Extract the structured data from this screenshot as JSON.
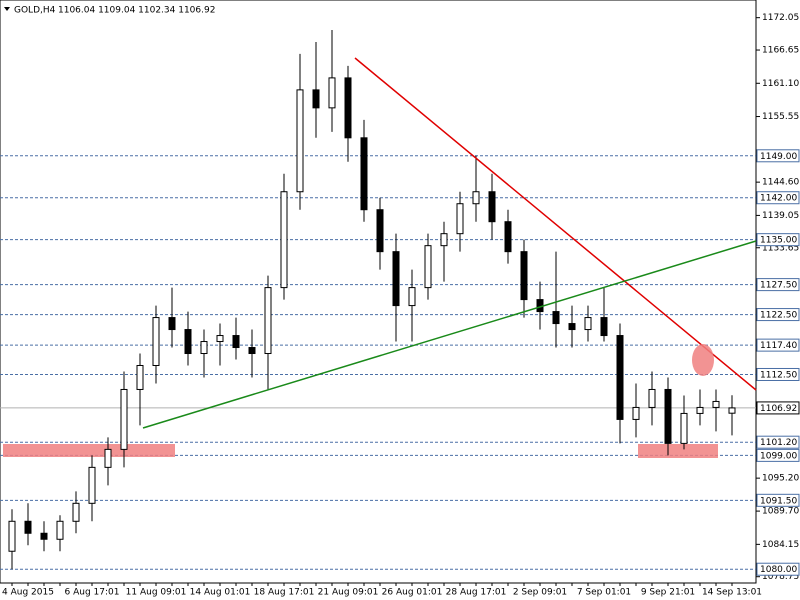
{
  "chart_data": {
    "type": "candlestick",
    "title": "GOLD,H4",
    "subtitle": "1106.04 1109.04 1102.34 1106.92",
    "categories": [
      null,
      "4 Aug 2015",
      null,
      null,
      null,
      "6 Aug 17:01",
      null,
      null,
      null,
      "11 Aug 09:01",
      null,
      null,
      null,
      "14 Aug 01:01",
      null,
      null,
      null,
      "18 Aug 17:01",
      null,
      null,
      null,
      "21 Aug 09:01",
      null,
      null,
      null,
      "26 Aug 01:01",
      null,
      null,
      null,
      "28 Aug 17:01",
      null,
      null,
      null,
      "2 Sep 09:01",
      null,
      null,
      null,
      "7 Sep 01:01",
      null,
      null,
      null,
      "9 Sep 21:01",
      null,
      null,
      null,
      "14 Sep 13:01"
    ],
    "open": [
      1083,
      1088,
      1086,
      1085,
      1088,
      1091,
      1097,
      1100,
      1110,
      1114,
      1122,
      1120,
      1116,
      1118,
      1119,
      1117,
      1116,
      1127,
      1143,
      1160,
      1157,
      1162,
      1152,
      1140,
      1133,
      1124,
      1127,
      1134,
      1136,
      1141,
      1143,
      1138,
      1133,
      1125,
      1123,
      1121,
      1120,
      1122,
      1119,
      1105,
      1107,
      1110,
      1101,
      1106,
      1107,
      1106.04
    ],
    "high": [
      1090,
      1091,
      1088,
      1089,
      1093,
      1099,
      1102,
      1113,
      1116,
      1124,
      1127,
      1123,
      1120,
      1121,
      1122,
      1120,
      1129,
      1146,
      1166,
      1168,
      1170,
      1164,
      1155,
      1142,
      1136,
      1130,
      1136,
      1138,
      1143,
      1149,
      1146,
      1140,
      1135,
      1128,
      1133,
      1124,
      1124,
      1127,
      1121,
      1111,
      1113,
      1112,
      1109,
      1110,
      1110,
      1109.04
    ],
    "low": [
      1080,
      1084,
      1083,
      1083,
      1086,
      1088,
      1094,
      1097,
      1104,
      1111,
      1117,
      1114,
      1112,
      1114,
      1115,
      1112,
      1110,
      1125,
      1140,
      1152,
      1153,
      1148,
      1138,
      1130,
      1118,
      1118,
      1125,
      1128,
      1133,
      1138,
      1135,
      1131,
      1122,
      1120,
      1117,
      1117,
      1118,
      1118,
      1101,
      1102,
      1104,
      1099,
      1100,
      1104,
      1103,
      1102.34
    ],
    "close": [
      1088,
      1086,
      1085,
      1088,
      1091,
      1097,
      1100,
      1110,
      1114,
      1122,
      1120,
      1116,
      1118,
      1119,
      1117,
      1116,
      1127,
      1143,
      1160,
      1157,
      1162,
      1152,
      1140,
      1133,
      1124,
      1127,
      1134,
      1136,
      1141,
      1143,
      1138,
      1133,
      1125,
      1123,
      1121,
      1120,
      1122,
      1119,
      1105,
      1107,
      1110,
      1101,
      1106,
      1107,
      1108,
      1106.92
    ],
    "up_color": "#ffffff",
    "down_color": "#000000",
    "ylim": [
      1077.7,
      1175.0
    ],
    "yticks": [
      {
        "value": 1172.05,
        "label": "1172.05"
      },
      {
        "value": 1166.65,
        "label": "1166.65"
      },
      {
        "value": 1161.1,
        "label": "1161.10"
      },
      {
        "value": 1155.55,
        "label": "1155.55"
      },
      {
        "value": 1144.6,
        "label": "1144.60"
      },
      {
        "value": 1139.05,
        "label": "1139.05"
      },
      {
        "value": 1133.65,
        "label": "1133.65"
      },
      {
        "value": 1095.2,
        "label": "1095.20"
      },
      {
        "value": 1089.7,
        "label": "1089.70"
      },
      {
        "value": 1084.15,
        "label": "1084.15"
      },
      {
        "value": 1078.75,
        "label": "1078.75"
      }
    ],
    "levels": [
      {
        "value": 1149.0,
        "label": "1149.00"
      },
      {
        "value": 1142.0,
        "label": "1142.00"
      },
      {
        "value": 1135.0,
        "label": "1135.00"
      },
      {
        "value": 1127.5,
        "label": "1127.50"
      },
      {
        "value": 1122.5,
        "label": "1122.50"
      },
      {
        "value": 1117.4,
        "label": "1117.40"
      },
      {
        "value": 1112.5,
        "label": "1112.50"
      },
      {
        "value": 1101.2,
        "label": "1101.20"
      },
      {
        "value": 1099.0,
        "label": "1099.00"
      },
      {
        "value": 1091.5,
        "label": "1091.50"
      },
      {
        "value": 1080.0,
        "label": "1080.00"
      }
    ],
    "level_color": "#4a6fa5",
    "current_price": {
      "value": 1106.92,
      "label": "1106.92"
    }
  }
}
